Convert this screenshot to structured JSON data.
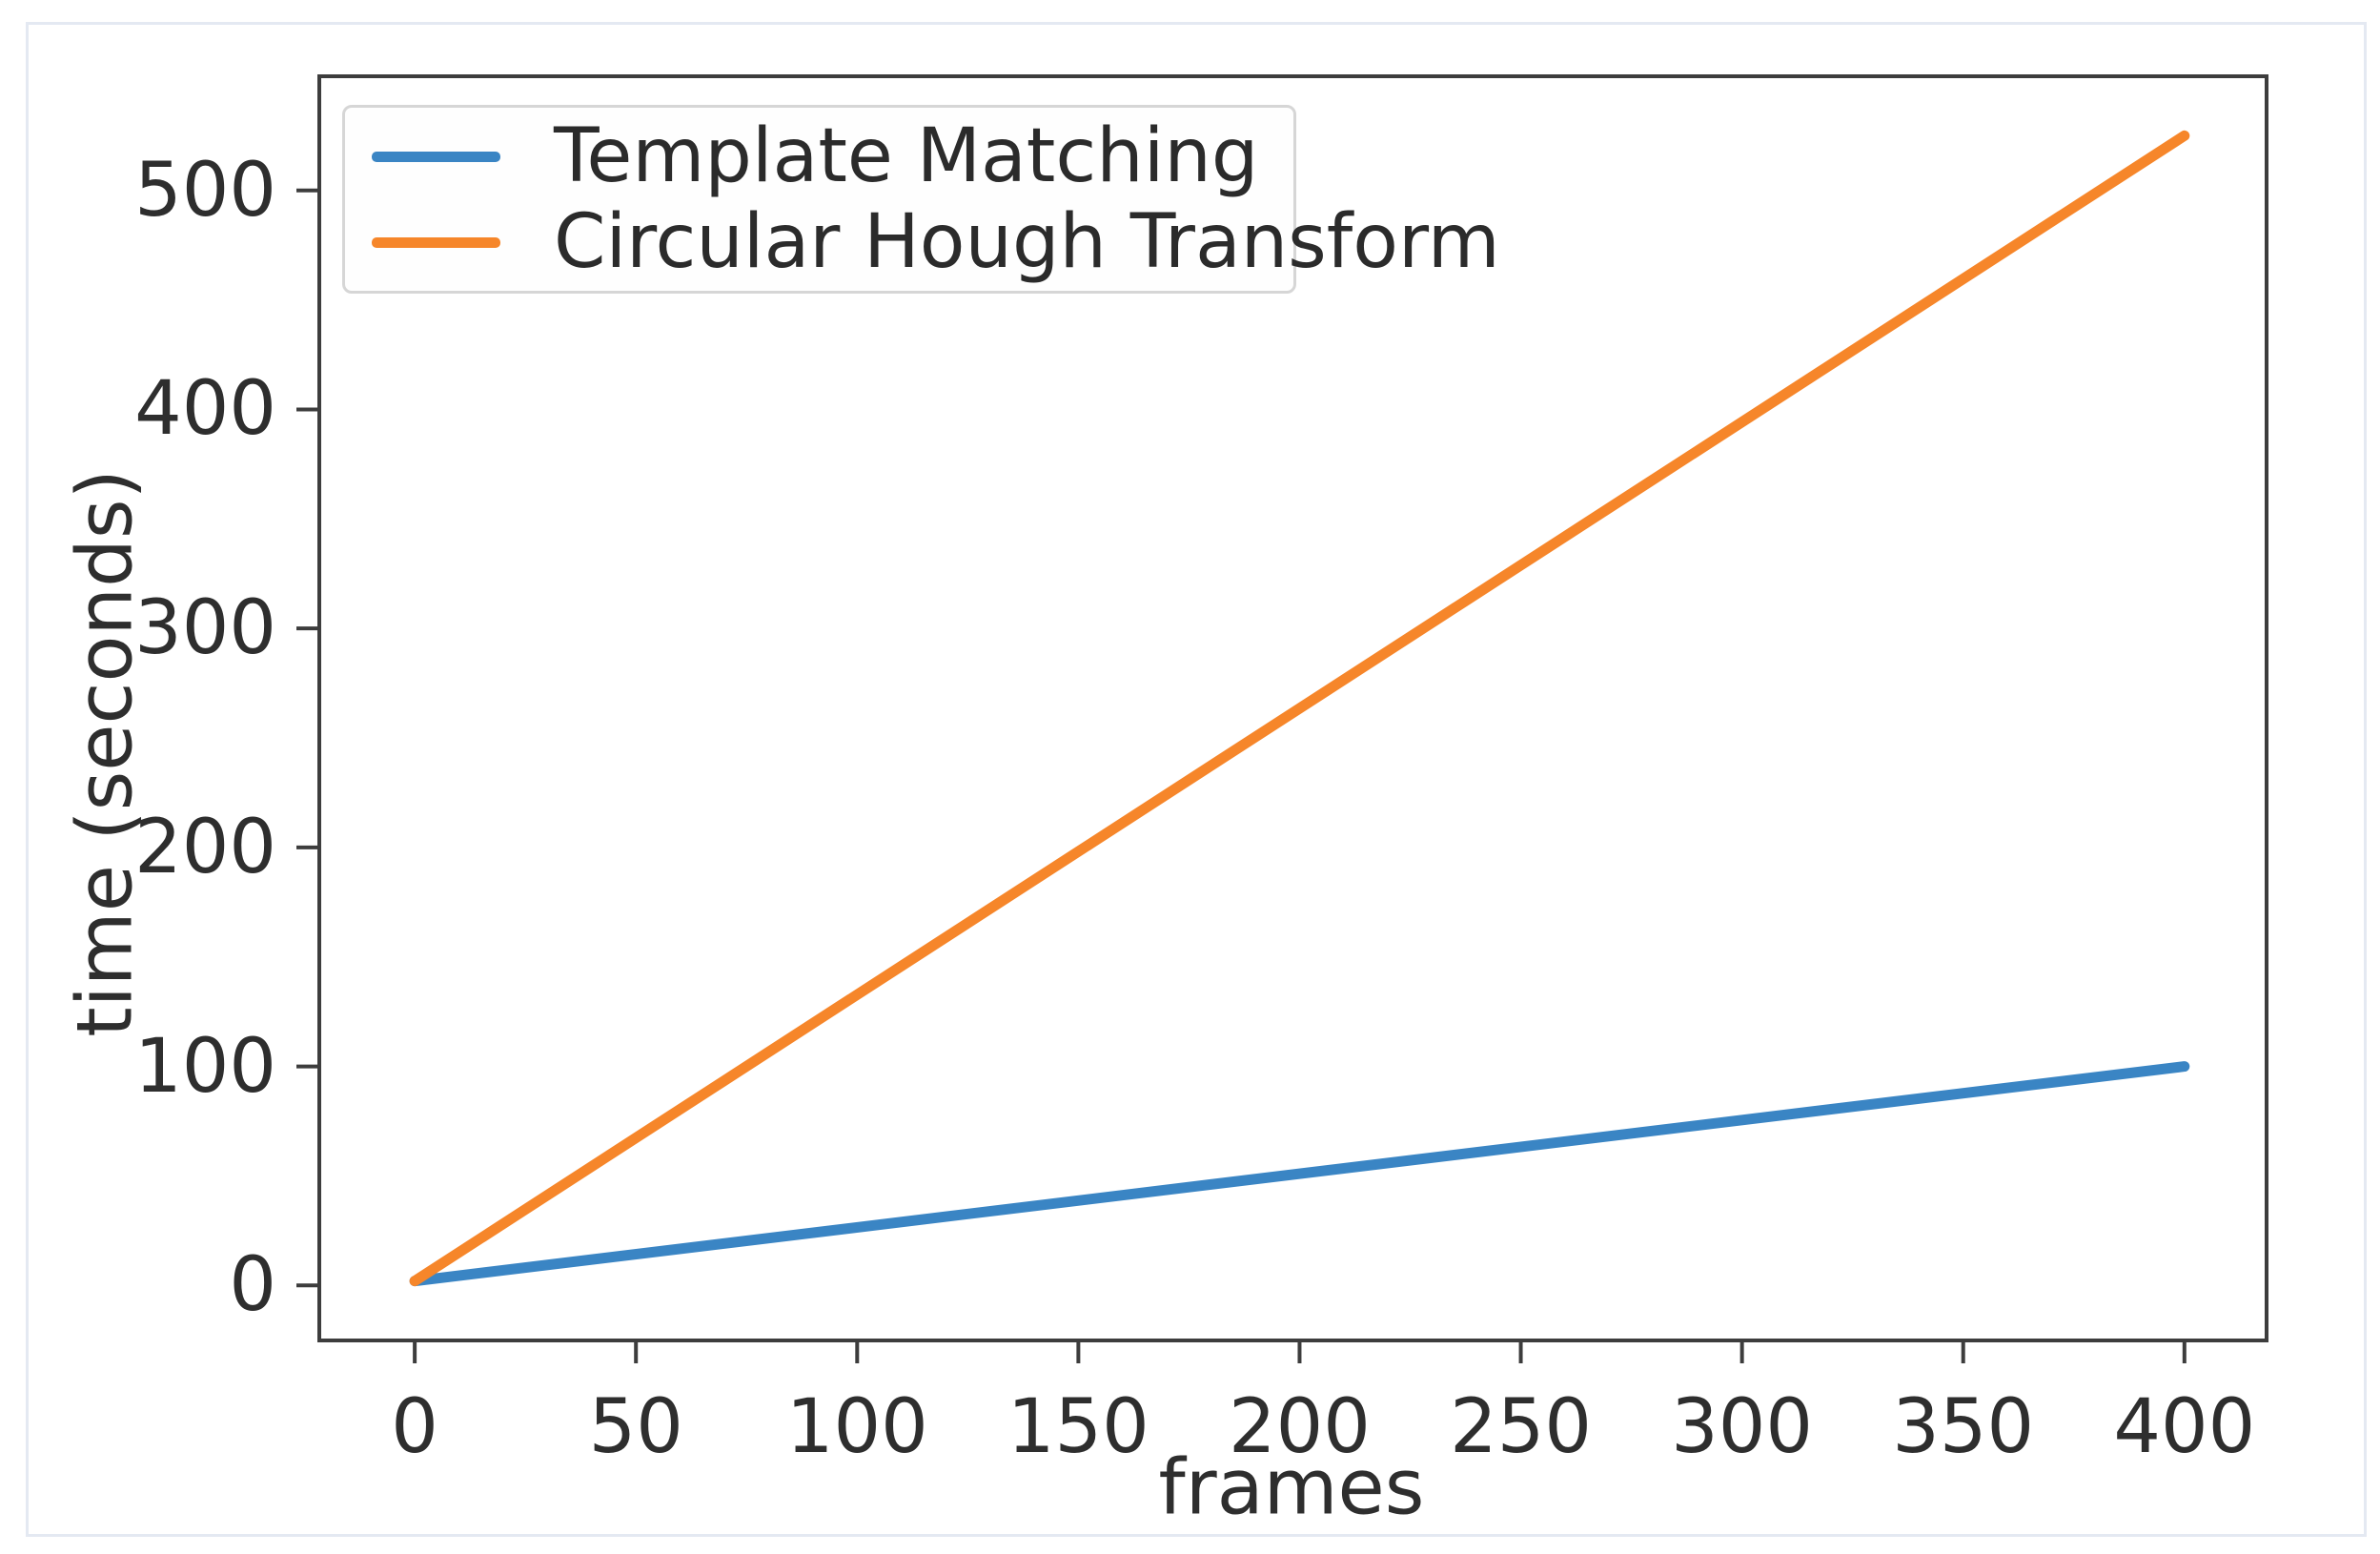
{
  "chart_data": {
    "type": "line",
    "title": "",
    "xlabel": "frames",
    "ylabel": "time (seconds)",
    "xlim": [
      -22,
      419
    ],
    "ylim": [
      -26,
      553
    ],
    "x_ticks": [
      0,
      50,
      100,
      150,
      200,
      250,
      300,
      350,
      400
    ],
    "y_ticks": [
      0,
      100,
      200,
      300,
      400,
      500
    ],
    "grid": false,
    "legend_position": "upper left",
    "series": [
      {
        "name": "Template Matching",
        "color": "#3a85c4",
        "x": [
          0,
          400
        ],
        "values": [
          2,
          100
        ]
      },
      {
        "name": "Circular Hough Transform",
        "color": "#f6862a",
        "x": [
          0,
          400
        ],
        "values": [
          2,
          525
        ]
      }
    ]
  },
  "colors": {
    "spine": "#3d3d3d",
    "tick_text": "#2e2e2e",
    "legend_border": "#d6d6d6",
    "figure_border": "#e4e9f2",
    "background": "#ffffff"
  }
}
